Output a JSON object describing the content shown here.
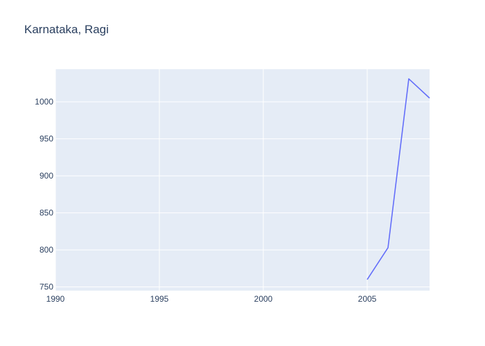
{
  "chart_data": {
    "type": "line",
    "title": "Karnataka, Ragi",
    "xlabel": "",
    "ylabel": "",
    "xlim": [
      1990,
      2008
    ],
    "ylim": [
      745,
      1044
    ],
    "x_ticks": [
      1990,
      1995,
      2000,
      2005
    ],
    "y_ticks": [
      750,
      800,
      850,
      900,
      950,
      1000
    ],
    "grid": true,
    "series": [
      {
        "color": "#636efa",
        "x": [
          2005,
          2006,
          2007,
          2008
        ],
        "y": [
          760,
          803,
          1031,
          1005
        ]
      }
    ]
  },
  "colors": {
    "plot_background": "#e5ecf6",
    "gridline": "#ffffff",
    "text": "#2a3f5f",
    "line": "#636efa"
  }
}
